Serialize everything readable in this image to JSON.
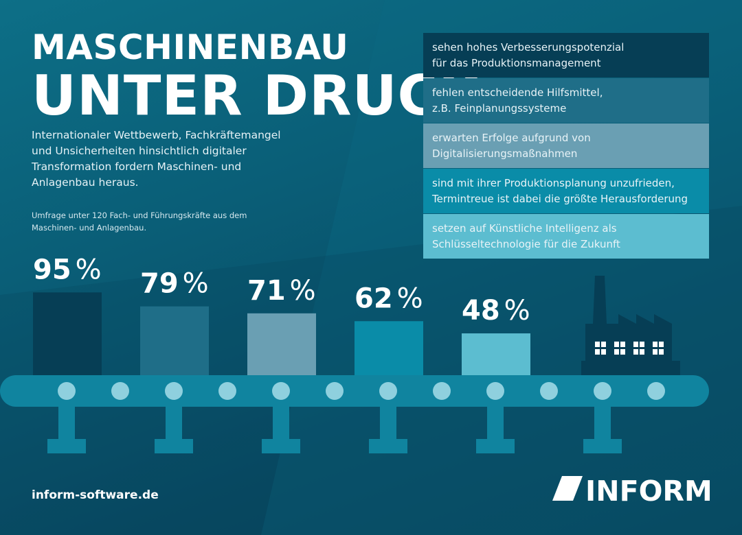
{
  "header": {
    "title_line1": "MASCHINENBAU",
    "title_line2": "UNTER DRUCK",
    "description": "Internationaler Wettbewerb, Fachkräftemangel und Unsicherheiten hinsichtlich digitaler Transformation fordern Maschinen- und Anlagenbau heraus.",
    "survey_note": "Umfrage unter 120 Fach- und Führungskräfte aus dem Maschinen- und Anlagenbau."
  },
  "colors": {
    "background": "#0a5e77",
    "bar_1": "#063e55",
    "bar_2": "#1f6e88",
    "bar_3": "#6a9fb3",
    "bar_4": "#0a8ca8",
    "bar_5": "#5cbdd0",
    "conveyor": "#10849f",
    "roller": "#8fd0de"
  },
  "chart_data": {
    "type": "bar",
    "unit": "%",
    "categories": [
      "sehen hohes Verbesserungspotenzial für das Produktionsmanagement",
      "fehlen entscheidende Hilfsmittel, z.B. Feinplanungssysteme",
      "erwarten Erfolge aufgrund von Digitalisierungsmaßnahmen",
      "sind mit ihrer Produktionsplanung unzufrieden, Termintreue ist dabei die größte Herausforderung",
      "setzen auf Künstliche Intelligenz als Schlüsseltechnologie für die Zukunft"
    ],
    "values": [
      95,
      79,
      71,
      62,
      48
    ],
    "value_labels": [
      "95",
      "79",
      "71",
      "62",
      "48"
    ],
    "ylim": [
      0,
      100
    ],
    "legend_position": "top-right"
  },
  "legend": [
    {
      "line1": "sehen hohes Verbesserungspotenzial",
      "line2": "für das Produktionsmanagement",
      "color": "#063e55"
    },
    {
      "line1": "fehlen entscheidende Hilfsmittel,",
      "line2": "z.B. Feinplanungssysteme",
      "color": "#1f6e88"
    },
    {
      "line1": "erwarten Erfolge aufgrund von",
      "line2": "Digitalisierungsmaßnahmen",
      "color": "#6a9fb3"
    },
    {
      "line1": "sind mit ihrer Produktionsplanung unzufrieden,",
      "line2": "Termintreue ist dabei die größte Herausforderung",
      "color": "#0a8ca8"
    },
    {
      "line1": "setzen auf Künstliche Intelligenz als",
      "line2": "Schlüsseltechnologie für die Zukunft",
      "color": "#5cbdd0"
    }
  ],
  "footer": {
    "url": "inform-software.de",
    "logo_text": "INFORM"
  },
  "icons": [
    "factory-icon",
    "conveyor-belt-icon",
    "inform-logo-icon"
  ]
}
